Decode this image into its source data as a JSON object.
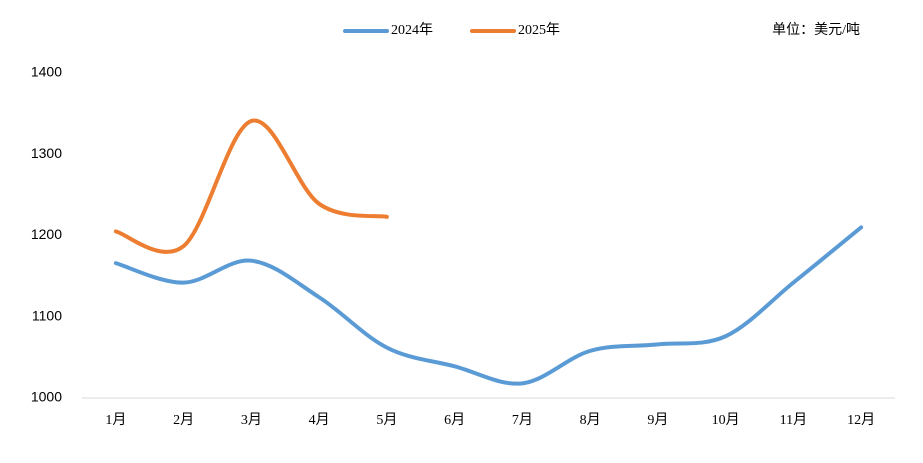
{
  "chart_data": {
    "type": "line",
    "unit": "单位：美元/吨",
    "categories": [
      "1月",
      "2月",
      "3月",
      "4月",
      "5月",
      "6月",
      "7月",
      "8月",
      "9月",
      "10月",
      "11月",
      "12月"
    ],
    "series": [
      {
        "name": "2024年",
        "color": "#5b9bd5",
        "values": [
          1166,
          1142,
          1169,
          1124,
          1062,
          1039,
          1018,
          1058,
          1066,
          1076,
          1142,
          1210
        ]
      },
      {
        "name": "2025年",
        "color": "#ed7d31",
        "values": [
          1205,
          1187,
          1341,
          1239,
          1223,
          null,
          null,
          null,
          null,
          null,
          null,
          null
        ]
      }
    ],
    "ylim": [
      1000,
      1400
    ],
    "yticks": [
      1000,
      1100,
      1200,
      1300,
      1400
    ],
    "grid": false,
    "legend": "top"
  }
}
